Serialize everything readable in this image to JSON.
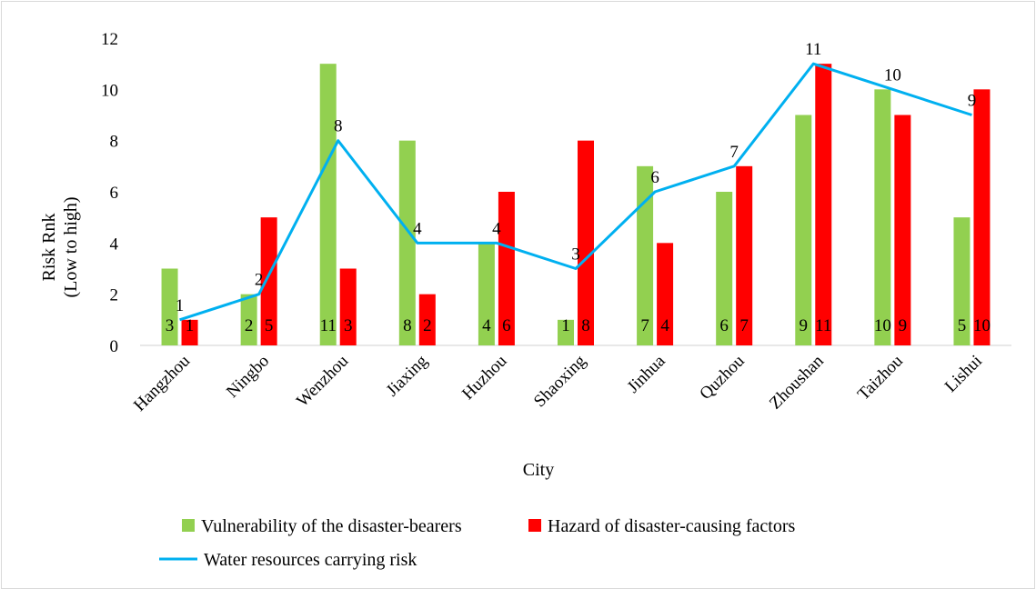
{
  "chart_data": {
    "type": "bar",
    "categories": [
      "Hangzhou",
      "Ningbo",
      "Wenzhou",
      "Jiaxing",
      "Huzhou",
      "Shaoxing",
      "Jinhua",
      "Quzhou",
      "Zhoushan",
      "Taizhou",
      "Lishui"
    ],
    "series": [
      {
        "name": "Vulnerability of the disaster-bearers",
        "type": "bar",
        "color": "#92d050",
        "values": [
          3,
          2,
          11,
          8,
          4,
          1,
          7,
          6,
          9,
          10,
          5
        ]
      },
      {
        "name": "Hazard of disaster-causing factors",
        "type": "bar",
        "color": "#ff0000",
        "values": [
          1,
          5,
          3,
          2,
          6,
          8,
          4,
          7,
          11,
          9,
          10
        ]
      },
      {
        "name": "Water resources carrying risk",
        "type": "line",
        "color": "#00b0f0",
        "values": [
          1,
          2,
          8,
          4,
          4,
          3,
          6,
          7,
          11,
          10,
          9
        ]
      }
    ],
    "xlabel": "City",
    "ylabel": [
      "Risk Rnk",
      "(Low to high)"
    ],
    "ylim": [
      0,
      12
    ],
    "yticks": [
      0,
      2,
      4,
      6,
      8,
      10,
      12
    ],
    "grid": false,
    "legend": "bottom"
  }
}
